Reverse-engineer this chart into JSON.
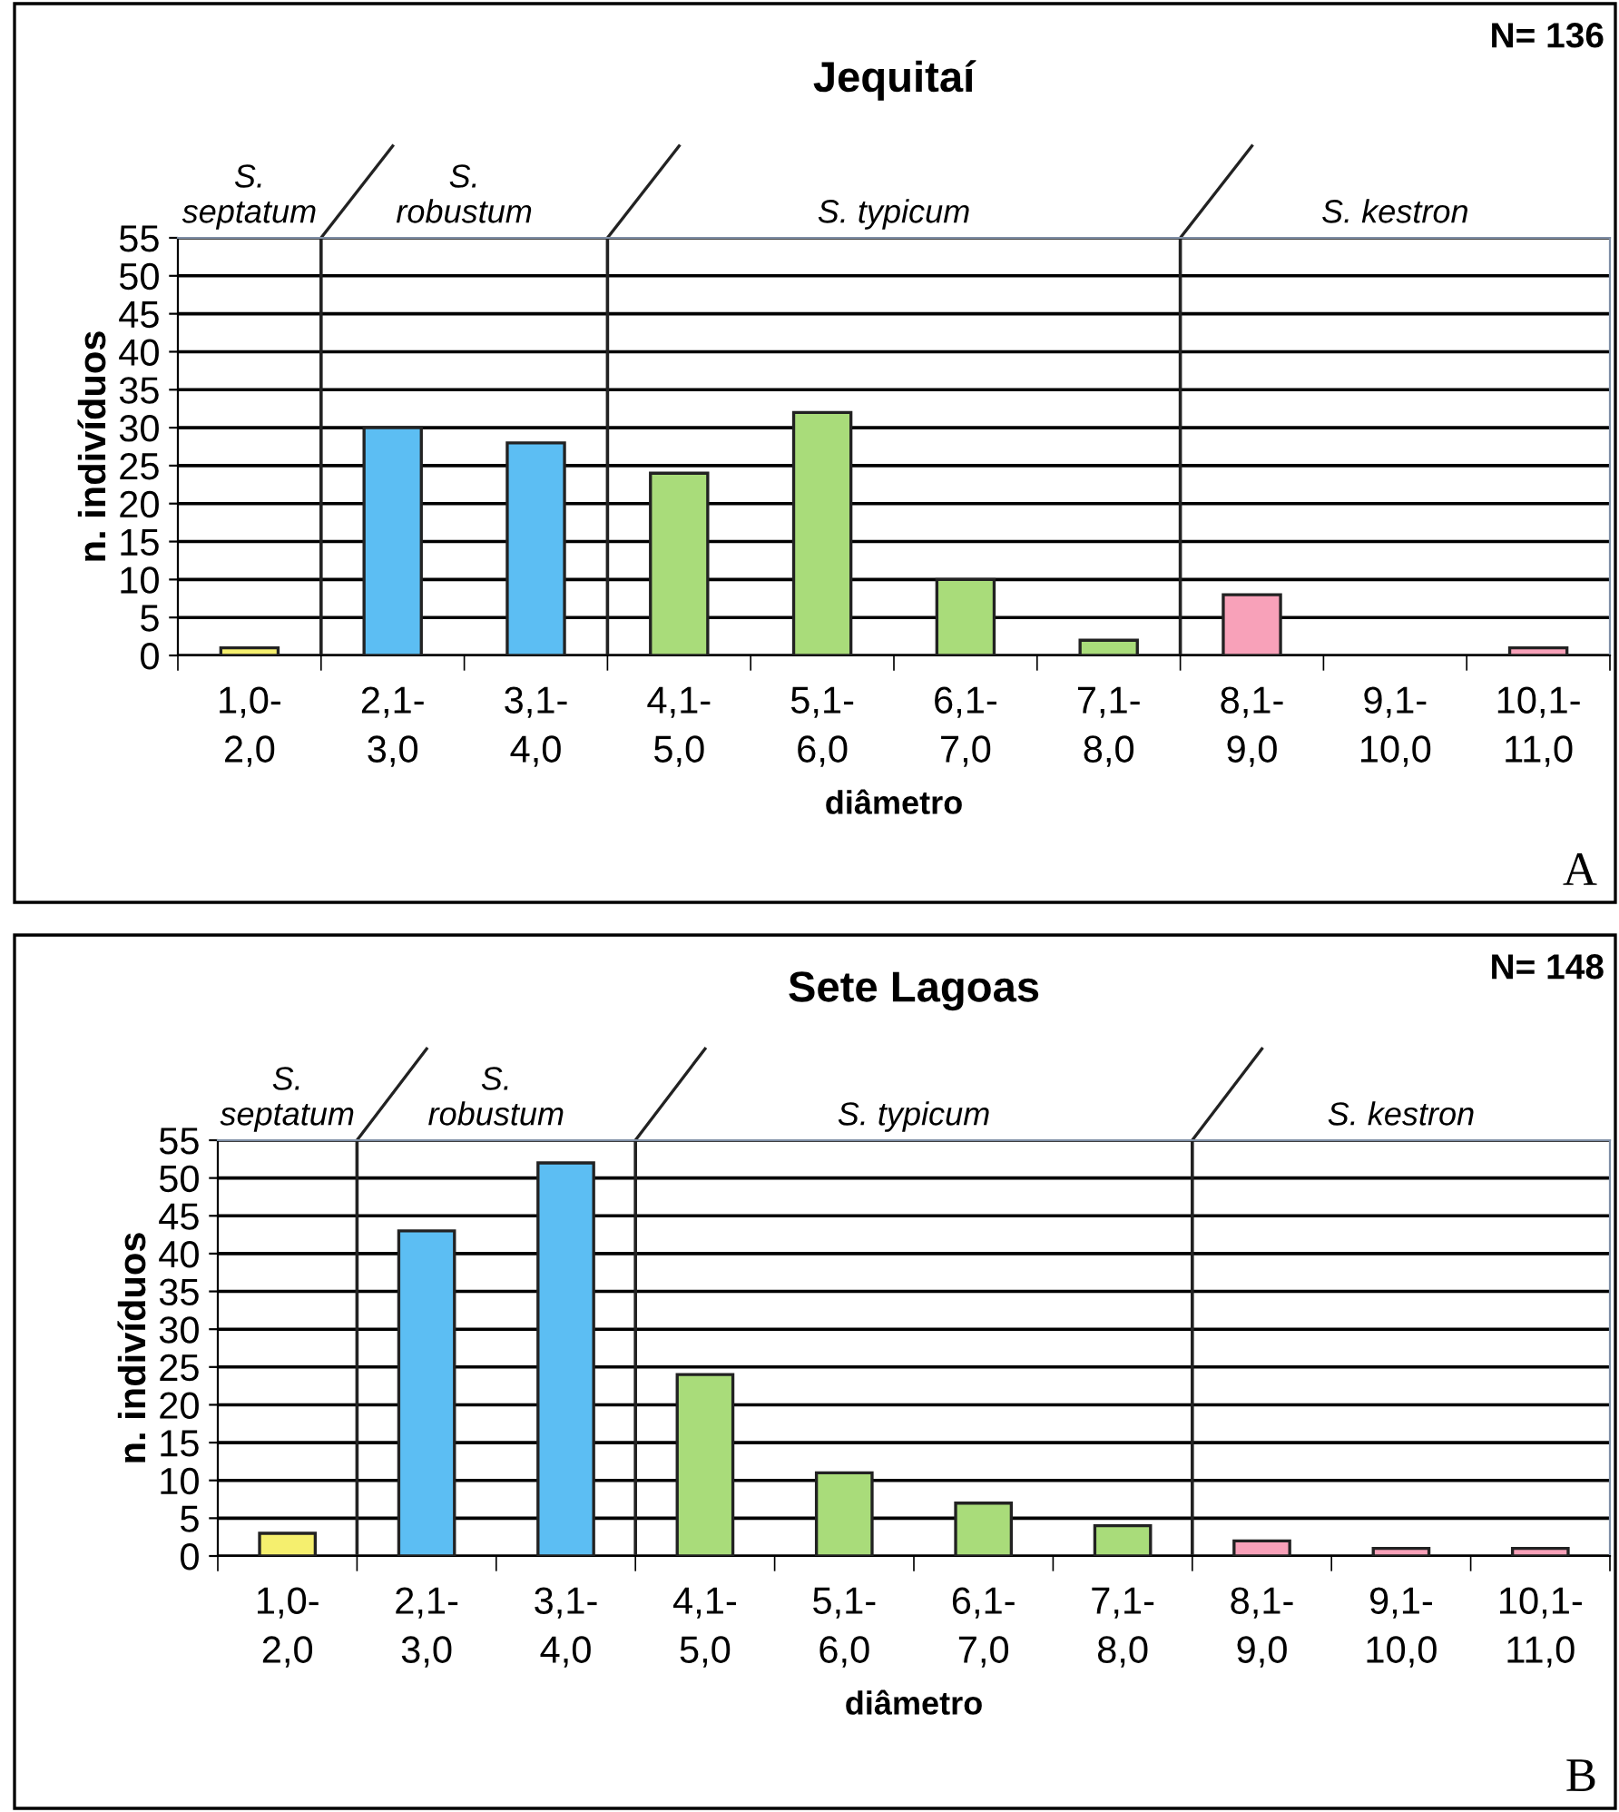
{
  "chart_data": [
    {
      "type": "bar",
      "title": "Jequitaí",
      "xlabel": "diâmetro",
      "ylabel": "n. indivíduos",
      "categories": [
        "1,0-\n2,0",
        "2,1-\n3,0",
        "3,1-\n4,0",
        "4,1-\n5,0",
        "5,1-\n6,0",
        "6,1-\n7,0",
        "7,1-\n8,0",
        "8,1-\n9,0",
        "9,1-\n10,0",
        "10,1-\n11,0"
      ],
      "values": [
        1,
        30,
        28,
        24,
        32,
        10,
        2,
        8,
        0,
        1
      ],
      "colors": [
        "#f5ef6e",
        "#5cbef3",
        "#5cbef3",
        "#a9dc7a",
        "#a9dc7a",
        "#a9dc7a",
        "#a9dc7a",
        "#f8a1b9",
        "#f8a1b9",
        "#f8a1b9"
      ],
      "ylim": [
        0,
        55
      ],
      "yticks": [
        0,
        5,
        10,
        15,
        20,
        25,
        30,
        35,
        40,
        45,
        50,
        55
      ],
      "grid": "y",
      "annotations": [
        "N= 136",
        "A",
        "S.\nseptatum",
        "S.\nrobustum",
        "S. typicum",
        "S. kestron"
      ]
    },
    {
      "type": "bar",
      "title": "Sete Lagoas",
      "xlabel": "diâmetro",
      "ylabel": "n. indivíduos",
      "categories": [
        "1,0-\n2,0",
        "2,1-\n3,0",
        "3,1-\n4,0",
        "4,1-\n5,0",
        "5,1-\n6,0",
        "6,1-\n7,0",
        "7,1-\n8,0",
        "8,1-\n9,0",
        "9,1-\n10,0",
        "10,1-\n11,0"
      ],
      "values": [
        3,
        43,
        52,
        24,
        11,
        7,
        4,
        2,
        1,
        1
      ],
      "colors": [
        "#f5ef6e",
        "#5cbef3",
        "#5cbef3",
        "#a9dc7a",
        "#a9dc7a",
        "#a9dc7a",
        "#a9dc7a",
        "#f8a1b9",
        "#f8a1b9",
        "#f8a1b9"
      ],
      "ylim": [
        0,
        55
      ],
      "yticks": [
        0,
        5,
        10,
        15,
        20,
        25,
        30,
        35,
        40,
        45,
        50,
        55
      ],
      "grid": "y",
      "annotations": [
        "N= 148",
        "B",
        "S.\nseptatum",
        "S.\nrobustum",
        "S. typicum",
        "S. kestron"
      ]
    }
  ]
}
